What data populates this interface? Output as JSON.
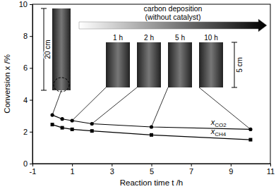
{
  "chart_data": {
    "type": "line",
    "x_label": "Reaction time  t /h",
    "y_label": "Conversion  x /%",
    "x": [
      0,
      0.5,
      1,
      2,
      5,
      10
    ],
    "series": [
      {
        "name": "xCO2",
        "color": "#000000",
        "marker": "circle",
        "line_style": "solid",
        "values": [
          3.05,
          2.8,
          2.7,
          2.5,
          2.3,
          2.15
        ]
      },
      {
        "name": "xCH4",
        "color": "#000000",
        "marker": "square",
        "line_style": "solid",
        "values": [
          2.45,
          2.25,
          2.15,
          2.05,
          1.8,
          1.5
        ]
      }
    ],
    "xlim": [
      -1,
      11
    ],
    "xticks": [
      -1,
      1,
      3,
      5,
      7,
      9,
      11
    ],
    "ylim": [
      0,
      10
    ],
    "yticks": [
      0,
      2,
      4,
      6,
      8,
      10
    ],
    "grid": false,
    "annotations": [
      "carbon deposition",
      "(without catalyst)",
      "20 cm",
      "5 cm",
      "1 h",
      "2 h",
      "5 h",
      "10 h"
    ]
  }
}
